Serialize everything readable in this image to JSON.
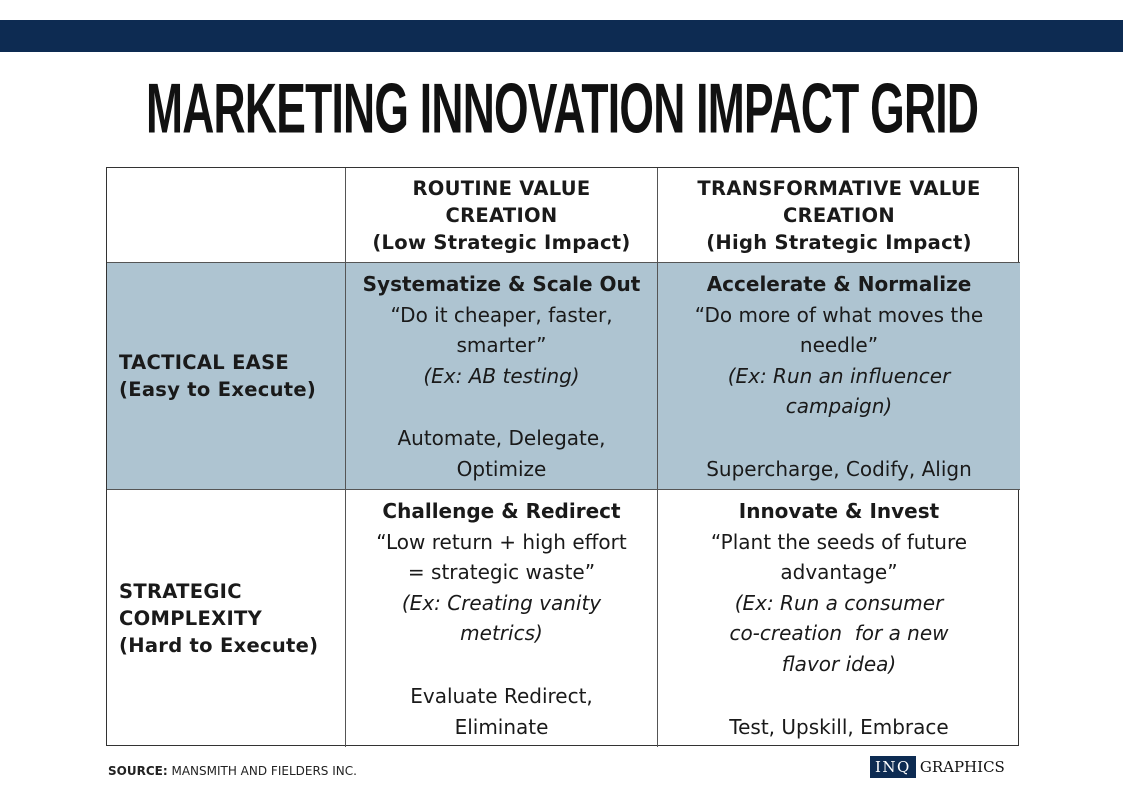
{
  "title": "MARKETING INNOVATION IMPACT GRID",
  "colors": {
    "banner": "#0d2b52",
    "shaded_row": "#aec4d1"
  },
  "columns": [
    {
      "lines": [
        "ROUTINE VALUE",
        "CREATION",
        "(Low Strategic Impact)"
      ]
    },
    {
      "lines": [
        "TRANSFORMATIVE VALUE",
        "CREATION",
        "(High Strategic Impact)"
      ]
    }
  ],
  "rows": [
    {
      "label_lines": [
        "TACTICAL EASE",
        "(Easy to Execute)"
      ],
      "cells": [
        {
          "title": "Systematize & Scale Out",
          "quote_lines": [
            "“Do it cheaper, faster,",
            "smarter”"
          ],
          "example_lines": [
            "(Ex: AB testing)"
          ],
          "action_lines": [
            "Automate, Delegate,",
            "Optimize"
          ]
        },
        {
          "title": "Accelerate & Normalize",
          "quote_lines": [
            "“Do more of what moves the",
            "needle”"
          ],
          "example_lines": [
            "(Ex: Run an influencer",
            "campaign)"
          ],
          "action_lines": [
            "Supercharge, Codify, Align"
          ]
        }
      ]
    },
    {
      "label_lines": [
        "STRATEGIC",
        "COMPLEXITY",
        "(Hard to Execute)"
      ],
      "cells": [
        {
          "title": "Challenge & Redirect",
          "quote_lines": [
            "“Low return + high effort",
            "= strategic waste”"
          ],
          "example_lines": [
            "(Ex: Creating vanity",
            "metrics)"
          ],
          "action_lines": [
            "Evaluate Redirect,",
            "Eliminate"
          ]
        },
        {
          "title": "Innovate & Invest",
          "quote_lines": [
            "“Plant the seeds of future",
            "advantage”"
          ],
          "example_lines": [
            "(Ex: Run a consumer",
            "co-creation  for a new",
            "flavor idea)"
          ],
          "action_lines": [
            "Test, Upskill, Embrace"
          ]
        }
      ]
    }
  ],
  "source": {
    "label": "SOURCE:",
    "text": "MANSMITH AND FIELDERS INC."
  },
  "credit": {
    "badge": "INQ",
    "text": "GRAPHICS"
  }
}
